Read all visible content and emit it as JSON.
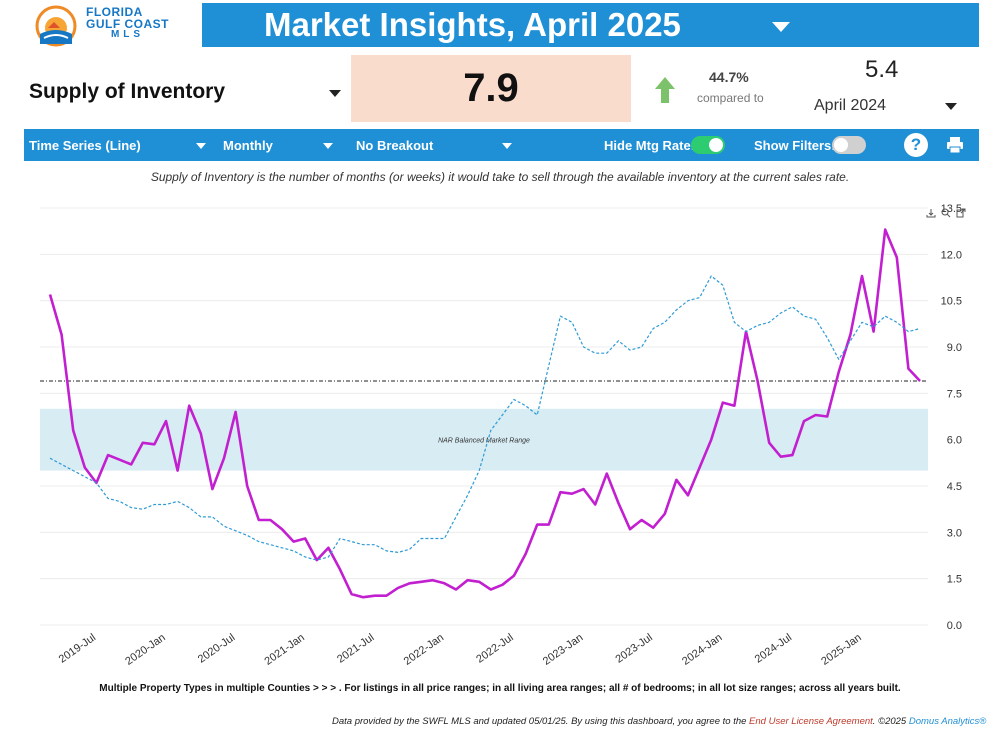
{
  "logo": {
    "line1": "FLORIDA",
    "line2": "GULF COAST",
    "line3": "MLS"
  },
  "header": {
    "title": "Market Insights, April 2025"
  },
  "metric": {
    "label": "Supply of Inventory",
    "value": "7.9",
    "change_pct": "44.7%",
    "compared_label": "compared to",
    "previous_value": "5.4",
    "previous_period": "April 2024"
  },
  "toolbar": {
    "chart_type": "Time Series (Line)",
    "interval": "Monthly",
    "breakout": "No Breakout",
    "hide_mtg_label": "Hide Mtg Rate:",
    "hide_mtg_on": true,
    "show_filters_label": "Show Filters:",
    "show_filters_on": false,
    "help_glyph": "?"
  },
  "description": "Supply of Inventory is the number of months (or weeks) it would take to sell through the available inventory at the current sales rate.",
  "footnote": "Multiple Property Types in multiple Counties > > > . For listings in all price ranges; in all living area ranges; all # of bedrooms; in all lot size ranges; across all years built.",
  "footer": {
    "text": "Data provided by the SWFL MLS and updated 05/01/25.  By using this dashboard, you agree to the ",
    "license_link": "End User License Agreement",
    "copyright": ".  ©2025 ",
    "domus": "Domus Analytics®"
  },
  "colors": {
    "brand_blue": "#1f8fd6",
    "value_bg": "#fadccc",
    "arrow_green": "#7cc26a",
    "toggle_on": "#2ecc71",
    "toggle_off": "#d0d0d0",
    "main_series": "#c21fd1",
    "mtg_series": "#2f9bd6",
    "band": "#d8ecf3"
  },
  "icons": {
    "help": "question-circle-icon",
    "print": "printer-icon",
    "trend": "arrow-up-icon",
    "chart_tools": [
      "download-icon",
      "zoom-icon",
      "export-icon"
    ]
  },
  "chart_data": {
    "type": "line",
    "y_axis": {
      "position": "right",
      "ylim": [
        0,
        13.5
      ],
      "ticks": [
        "0.0",
        "1.5",
        "3.0",
        "4.5",
        "6.0",
        "7.5",
        "9.0",
        "10.5",
        "12.0",
        "13.5"
      ]
    },
    "x_ticks": [
      "2019-Jul",
      "2020-Jan",
      "2020-Jul",
      "2021-Jan",
      "2021-Jul",
      "2022-Jan",
      "2022-Jul",
      "2023-Jan",
      "2023-Jul",
      "2024-Jan",
      "2024-Jul",
      "2025-Jan"
    ],
    "x_start": "2019-Mar",
    "band": {
      "label": "NAR Balanced Market Range",
      "from": 5.0,
      "to": 7.0
    },
    "reference_line": 7.9,
    "series": [
      {
        "style": "solid",
        "values": [
          10.7,
          9.4,
          6.3,
          5.1,
          4.6,
          5.5,
          5.35,
          5.2,
          5.9,
          5.85,
          6.6,
          5.0,
          7.1,
          6.2,
          4.4,
          5.4,
          6.9,
          4.5,
          3.4,
          3.4,
          3.1,
          2.7,
          2.8,
          2.1,
          2.5,
          1.8,
          1.0,
          0.9,
          0.95,
          0.95,
          1.2,
          1.35,
          1.4,
          1.45,
          1.35,
          1.15,
          1.45,
          1.4,
          1.15,
          1.3,
          1.6,
          2.3,
          3.25,
          3.25,
          4.3,
          4.25,
          4.4,
          3.9,
          4.9,
          3.95,
          3.1,
          3.4,
          3.15,
          3.6,
          4.7,
          4.2,
          5.1,
          6.0,
          7.2,
          7.1,
          9.5,
          7.9,
          5.9,
          5.45,
          5.5,
          6.6,
          6.8,
          6.75,
          8.2,
          9.4,
          11.3,
          9.5,
          12.8,
          11.9,
          8.3,
          7.9
        ]
      },
      {
        "style": "dashed",
        "values": [
          5.4,
          5.2,
          5.0,
          4.8,
          4.6,
          4.1,
          4.0,
          3.8,
          3.75,
          3.9,
          3.9,
          4.0,
          3.8,
          3.5,
          3.5,
          3.2,
          3.05,
          2.9,
          2.7,
          2.6,
          2.5,
          2.4,
          2.2,
          2.1,
          2.2,
          2.8,
          2.7,
          2.6,
          2.6,
          2.4,
          2.35,
          2.45,
          2.8,
          2.8,
          2.8,
          3.5,
          4.2,
          5.0,
          6.3,
          6.8,
          7.3,
          7.1,
          6.8,
          8.4,
          10.0,
          9.8,
          9.0,
          8.8,
          8.8,
          9.2,
          8.9,
          9.0,
          9.6,
          9.8,
          10.2,
          10.5,
          10.6,
          11.3,
          11.0,
          9.8,
          9.5,
          9.7,
          9.8,
          10.1,
          10.3,
          10.0,
          9.9,
          9.3,
          8.6,
          9.2,
          9.8,
          9.65,
          10.0,
          9.8,
          9.5,
          9.6
        ]
      }
    ]
  }
}
